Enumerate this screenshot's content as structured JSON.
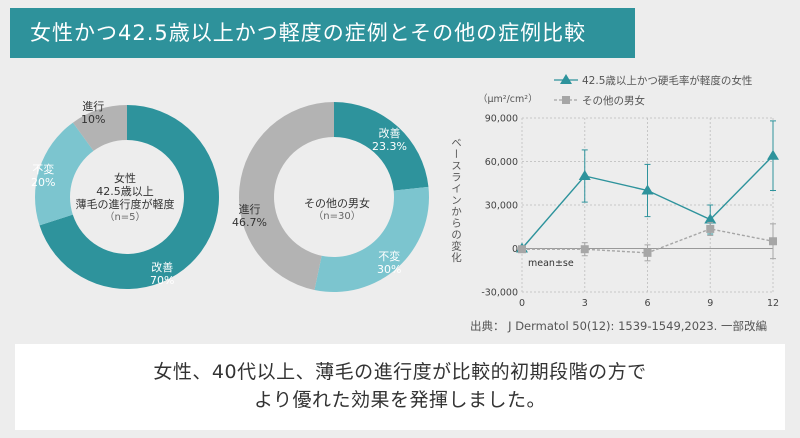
{
  "title": "女性かつ42.5歳以上かつ軽度の症例とその他の症例比較",
  "colors": {
    "teal": "#2e939c",
    "teal_light": "#7cc5cf",
    "gray": "#b3b3b3",
    "title_bg": "#2e929b"
  },
  "chart_data": [
    {
      "type": "pie",
      "name": "女性42.5歳以上軽度",
      "center_label": [
        "女性",
        "42.5歳以上",
        "薄毛の進行度が軽度"
      ],
      "center_sub": "（n=5）",
      "slices": [
        {
          "name": "改善",
          "value": 70,
          "label": "70%",
          "color": "#2e939c"
        },
        {
          "name": "不変",
          "value": 20,
          "label": "20%",
          "color": "#7cc5cf"
        },
        {
          "name": "進行",
          "value": 10,
          "label": "10%",
          "color": "#b3b3b3"
        }
      ]
    },
    {
      "type": "pie",
      "name": "その他の男女",
      "center_label": [
        "その他の男女"
      ],
      "center_sub": "（n=30）",
      "slices": [
        {
          "name": "改善",
          "value": 23.3,
          "label": "23.3%",
          "color": "#2e939c"
        },
        {
          "name": "不変",
          "value": 30,
          "label": "30%",
          "color": "#7cc5cf"
        },
        {
          "name": "進行",
          "value": 46.7,
          "label": "46.7%",
          "color": "#b3b3b3"
        }
      ]
    },
    {
      "type": "line",
      "ylabel": "ベースラインからの変化",
      "unit": "（μm²/cm²）",
      "annotation": "mean±se",
      "x": [
        0,
        3,
        6,
        9,
        12
      ],
      "xticks": [
        "0",
        "3",
        "6",
        "9",
        "12"
      ],
      "yticks": [
        -30000,
        0,
        30000,
        60000,
        90000
      ],
      "ytick_labels": [
        "-30,000",
        "0",
        "30,000",
        "60,000",
        "90,000"
      ],
      "ylim": [
        -30000,
        90000
      ],
      "series": [
        {
          "name": "42.5歳以上かつ硬毛率が軽度の女性",
          "marker": "triangle",
          "color": "#2e939c",
          "values": [
            0,
            50000,
            40000,
            20000,
            64000
          ],
          "err": [
            0,
            18000,
            18000,
            10000,
            24000
          ]
        },
        {
          "name": "その他の男女",
          "marker": "square",
          "color": "#a6a6a6",
          "values": [
            -500,
            -500,
            -3000,
            13500,
            5000
          ],
          "err": [
            0,
            4500,
            5500,
            4500,
            12000
          ]
        }
      ]
    }
  ],
  "source": "出典： J Dermatol 50(12): 1539-1549,2023. 一部改編",
  "conclusion": [
    "女性、40代以上、薄毛の進行度が比較的初期段階の方で",
    "より優れた効果を発揮しました。"
  ]
}
